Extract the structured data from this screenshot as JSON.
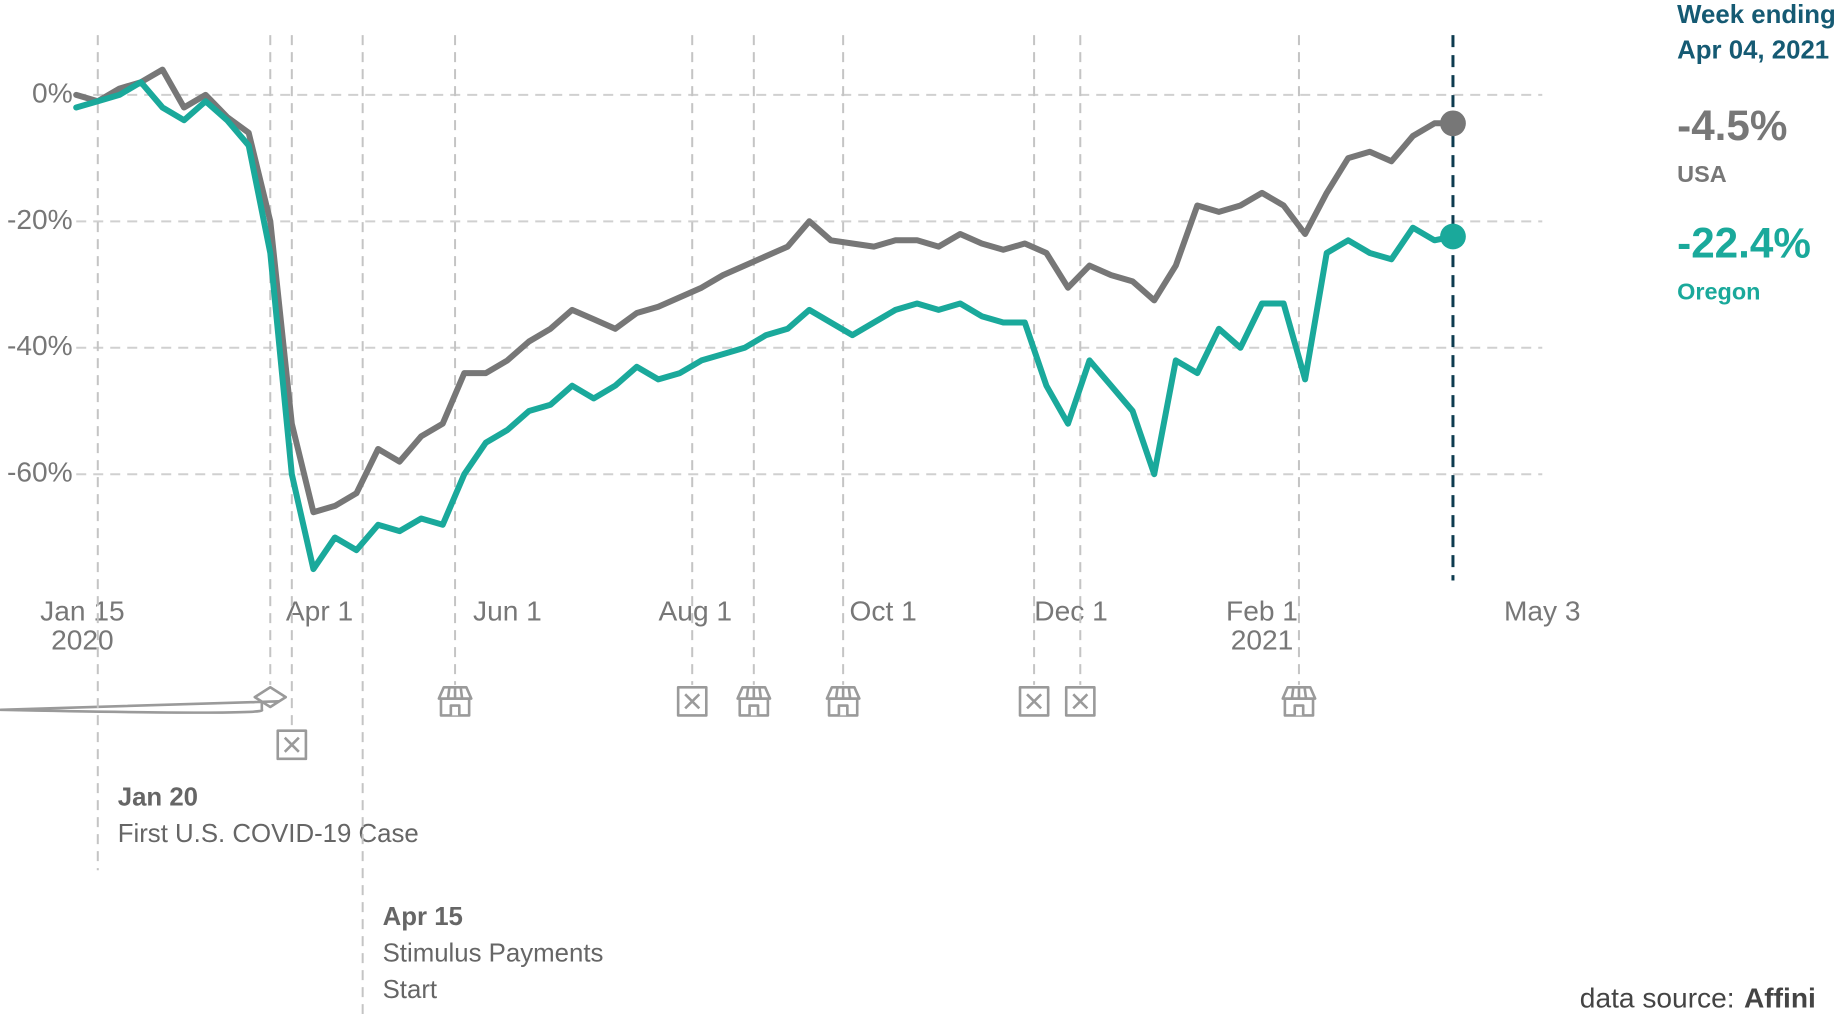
{
  "chart_data": {
    "type": "line",
    "x": [
      "2020-01-13",
      "2020-01-20",
      "2020-01-27",
      "2020-02-03",
      "2020-02-10",
      "2020-02-17",
      "2020-02-24",
      "2020-03-02",
      "2020-03-09",
      "2020-03-16",
      "2020-03-23",
      "2020-03-30",
      "2020-04-06",
      "2020-04-13",
      "2020-04-20",
      "2020-04-27",
      "2020-05-04",
      "2020-05-11",
      "2020-05-18",
      "2020-05-25",
      "2020-06-01",
      "2020-06-08",
      "2020-06-15",
      "2020-06-22",
      "2020-06-29",
      "2020-07-06",
      "2020-07-13",
      "2020-07-20",
      "2020-07-27",
      "2020-08-03",
      "2020-08-10",
      "2020-08-17",
      "2020-08-24",
      "2020-08-31",
      "2020-09-07",
      "2020-09-14",
      "2020-09-21",
      "2020-09-28",
      "2020-10-05",
      "2020-10-12",
      "2020-10-19",
      "2020-10-26",
      "2020-11-02",
      "2020-11-09",
      "2020-11-16",
      "2020-11-23",
      "2020-11-30",
      "2020-12-07",
      "2020-12-14",
      "2020-12-21",
      "2020-12-28",
      "2021-01-04",
      "2021-01-11",
      "2021-01-18",
      "2021-01-25",
      "2021-02-01",
      "2021-02-08",
      "2021-02-15",
      "2021-02-22",
      "2021-03-01",
      "2021-03-08",
      "2021-03-15",
      "2021-03-22",
      "2021-03-29",
      "2021-04-04"
    ],
    "series": [
      {
        "name": "USA",
        "color": "#777777",
        "end_label": "-4.5%",
        "values": [
          0,
          -1,
          1,
          2,
          4,
          -2,
          0,
          -3.5,
          -6,
          -20,
          -52,
          -66,
          -65,
          -63,
          -56,
          -58,
          -54,
          -52,
          -44,
          -44,
          -42,
          -39,
          -37,
          -34,
          -35.5,
          -37,
          -34.5,
          -33.5,
          -32,
          -30.5,
          -28.5,
          -27,
          -25.5,
          -24,
          -20,
          -23,
          -23.5,
          -24,
          -23,
          -23,
          -24,
          -22,
          -23.5,
          -24.5,
          -23.5,
          -25,
          -30.5,
          -27,
          -28.5,
          -29.5,
          -32.5,
          -27,
          -17.5,
          -18.5,
          -17.5,
          -15.5,
          -17.5,
          -22,
          -15.5,
          -10,
          -9,
          -10.5,
          -6.5,
          -4.5,
          -4.5
        ]
      },
      {
        "name": "Oregon",
        "color": "#1aa99b",
        "end_label": "-22.4%",
        "values": [
          -2,
          -1,
          0,
          2,
          -2,
          -4,
          -1,
          -4,
          -8,
          -25,
          -60,
          -75,
          -70,
          -72,
          -68,
          -69,
          -67,
          -68,
          -60,
          -55,
          -53,
          -50,
          -49,
          -46,
          -48,
          -46,
          -43,
          -45,
          -44,
          -42,
          -41,
          -40,
          -38,
          -37,
          -34,
          -36,
          -38,
          -36,
          -34,
          -33,
          -34,
          -33,
          -35,
          -36,
          -36,
          -46,
          -52,
          -42,
          -46,
          -50,
          -60,
          -42,
          -44,
          -37,
          -40,
          -33,
          -33,
          -45,
          -25,
          -23,
          -25,
          -26,
          -21,
          -23,
          -22.4
        ]
      }
    ],
    "xlim": [
      "2020-01-13",
      "2021-05-03"
    ],
    "xticks": [
      {
        "value": "2020-01-15",
        "label": "Jan 15\n2020"
      },
      {
        "value": "2020-04-01",
        "label": "Apr 1"
      },
      {
        "value": "2020-06-01",
        "label": "Jun 1"
      },
      {
        "value": "2020-08-01",
        "label": "Aug 1"
      },
      {
        "value": "2020-10-01",
        "label": "Oct 1"
      },
      {
        "value": "2020-12-01",
        "label": "Dec 1"
      },
      {
        "value": "2021-02-01",
        "label": "Feb 1\n2021"
      },
      {
        "value": "2021-05-03",
        "label": "May 3"
      }
    ],
    "ylim": [
      -77,
      10
    ],
    "yticks": [
      {
        "value": 0,
        "label": "0%"
      },
      {
        "value": -20,
        "label": "-20%"
      },
      {
        "value": -40,
        "label": "-40%"
      },
      {
        "value": -60,
        "label": "-60%"
      }
    ],
    "grid": true,
    "callout_title": "Week ending",
    "callout_date": "Apr 04, 2021",
    "events": [
      {
        "date": "2020-03-16",
        "icon": "school"
      },
      {
        "date": "2020-03-23",
        "icon": "closure"
      },
      {
        "date": "2020-05-15",
        "icon": "reopen"
      },
      {
        "date": "2020-07-31",
        "icon": "closure"
      },
      {
        "date": "2020-08-20",
        "icon": "reopen"
      },
      {
        "date": "2020-09-18",
        "icon": "reopen"
      },
      {
        "date": "2020-11-19",
        "icon": "closure"
      },
      {
        "date": "2020-12-04",
        "icon": "closure"
      },
      {
        "date": "2021-02-13",
        "icon": "reopen"
      }
    ],
    "annotations": [
      {
        "date": "2020-01-20",
        "title": "Jan 20",
        "text": [
          "First U.S. COVID-19 Case"
        ]
      },
      {
        "date": "2020-04-15",
        "title": "Apr 15",
        "text": [
          "Stimulus Payments",
          "Start"
        ]
      }
    ],
    "source_prefix": "data source:",
    "source_name": "Affini"
  }
}
